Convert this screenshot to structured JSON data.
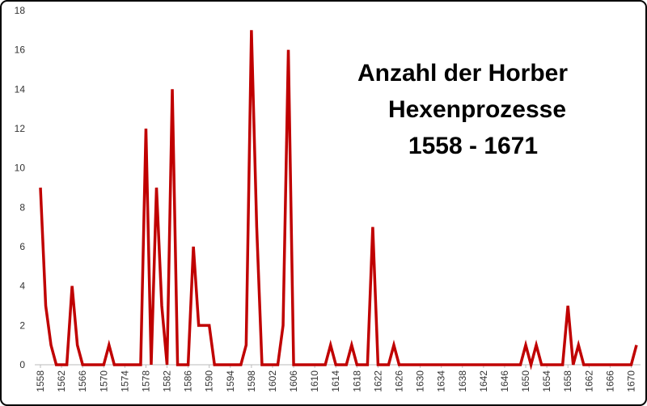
{
  "chart_data": {
    "type": "line",
    "title": [
      "Anzahl der Horber",
      "Hexenprozesse",
      "1558 - 1671"
    ],
    "x": [
      1558,
      1559,
      1560,
      1561,
      1562,
      1563,
      1564,
      1565,
      1566,
      1567,
      1568,
      1569,
      1570,
      1571,
      1572,
      1573,
      1574,
      1575,
      1576,
      1577,
      1578,
      1579,
      1580,
      1581,
      1582,
      1583,
      1584,
      1585,
      1586,
      1587,
      1588,
      1589,
      1590,
      1591,
      1592,
      1593,
      1594,
      1595,
      1596,
      1597,
      1598,
      1599,
      1600,
      1601,
      1602,
      1603,
      1604,
      1605,
      1606,
      1607,
      1608,
      1609,
      1610,
      1611,
      1612,
      1613,
      1614,
      1615,
      1616,
      1617,
      1618,
      1619,
      1620,
      1621,
      1622,
      1623,
      1624,
      1625,
      1626,
      1627,
      1628,
      1629,
      1630,
      1631,
      1632,
      1633,
      1634,
      1635,
      1636,
      1637,
      1638,
      1639,
      1640,
      1641,
      1642,
      1643,
      1644,
      1645,
      1646,
      1647,
      1648,
      1649,
      1650,
      1651,
      1652,
      1653,
      1654,
      1655,
      1656,
      1657,
      1658,
      1659,
      1660,
      1661,
      1662,
      1663,
      1664,
      1665,
      1666,
      1667,
      1668,
      1669,
      1670,
      1671
    ],
    "series": [
      {
        "name": "Hexenprozesse",
        "color": "#c00000",
        "values": [
          9,
          3,
          1,
          0,
          0,
          0,
          4,
          1,
          0,
          0,
          0,
          0,
          0,
          1,
          0,
          0,
          0,
          0,
          0,
          0,
          12,
          0,
          9,
          3,
          0,
          14,
          0,
          0,
          0,
          6,
          2,
          2,
          2,
          0,
          0,
          0,
          0,
          0,
          0,
          1,
          17,
          7,
          0,
          0,
          0,
          0,
          2,
          16,
          0,
          0,
          0,
          0,
          0,
          0,
          0,
          1,
          0,
          0,
          0,
          1,
          0,
          0,
          0,
          7,
          0,
          0,
          0,
          1,
          0,
          0,
          0,
          0,
          0,
          0,
          0,
          0,
          0,
          0,
          0,
          0,
          0,
          0,
          0,
          0,
          0,
          0,
          0,
          0,
          0,
          0,
          0,
          0,
          1,
          0,
          1,
          0,
          0,
          0,
          0,
          0,
          3,
          0,
          1,
          0,
          0,
          0,
          0,
          0,
          0,
          0,
          0,
          0,
          0,
          1
        ]
      }
    ],
    "xlim": [
      1558,
      1671
    ],
    "xticks": [
      1558,
      1562,
      1566,
      1570,
      1574,
      1578,
      1582,
      1586,
      1590,
      1594,
      1598,
      1602,
      1606,
      1610,
      1614,
      1618,
      1622,
      1626,
      1630,
      1634,
      1638,
      1642,
      1646,
      1650,
      1654,
      1658,
      1662,
      1666,
      1670
    ],
    "ylim": [
      0,
      18
    ],
    "yticks": [
      0,
      2,
      4,
      6,
      8,
      10,
      12,
      14,
      16,
      18
    ],
    "grid": false
  }
}
